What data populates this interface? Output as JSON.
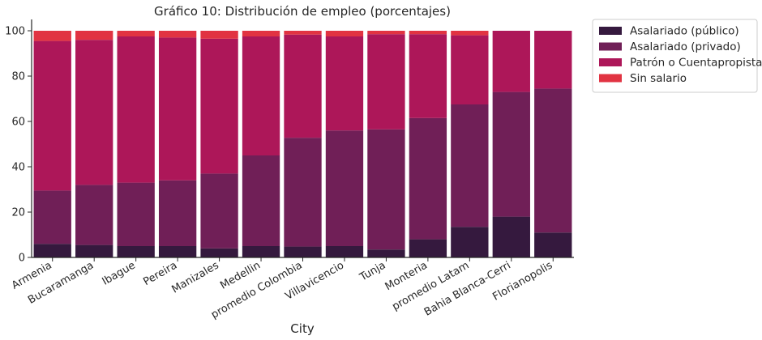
{
  "chart_data": {
    "type": "bar",
    "stacked": true,
    "title": "Gráfico 10: Distribución de empleo (porcentajes)",
    "xlabel": "City",
    "ylabel": "",
    "ylim": [
      0,
      105
    ],
    "yticks": [
      "0",
      "20",
      "40",
      "60",
      "80",
      "100"
    ],
    "grid": false,
    "legend_position": "outside-top-right",
    "categories": [
      "Armenia",
      "Bucaramanga",
      "Ibague",
      "Pereira",
      "Manizales",
      "Medellin",
      "promedio Colombia",
      "Villavicencio",
      "Tunja",
      "Monteria",
      "promedio Latam",
      "Bahia Blanca-Cerri",
      "Florianopolis"
    ],
    "series": [
      {
        "name": "Asalariado (público)",
        "color": "#35193e",
        "values": [
          6,
          5.5,
          5,
          5,
          4,
          5,
          4.8,
          5,
          3.5,
          8,
          13.5,
          18,
          11
        ]
      },
      {
        "name": "Asalariado (privado)",
        "color": "#701f57",
        "values": [
          23.5,
          26.5,
          28,
          29,
          33,
          40,
          48,
          51,
          53,
          53.5,
          54,
          55,
          63.5
        ]
      },
      {
        "name": "Patrón o Cuentapropista",
        "color": "#ad1759",
        "values": [
          66,
          64,
          64.5,
          63,
          59.5,
          52.5,
          45.5,
          41.5,
          42,
          37,
          30.5,
          27,
          25.5
        ]
      },
      {
        "name": "Sin salario",
        "color": "#e13342",
        "values": [
          4.5,
          4,
          2.5,
          3,
          3.5,
          2.5,
          1.7,
          2.5,
          1.5,
          1.5,
          2,
          0,
          0
        ]
      }
    ]
  }
}
